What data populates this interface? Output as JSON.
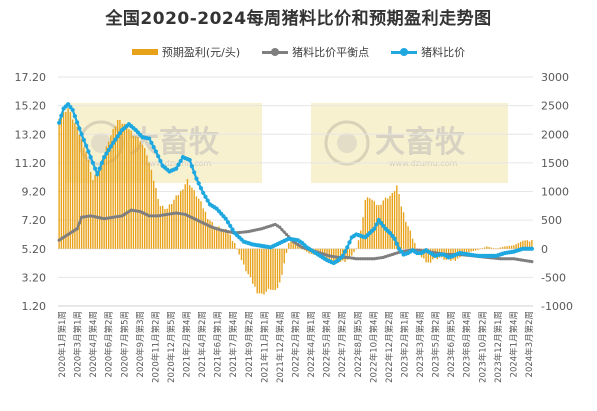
{
  "chart_data": {
    "type": "bar+line",
    "title": "全国2020-2024每周猪料比价和预期盈利走势图",
    "series": [
      {
        "name": "预期盈利(元/头)",
        "kind": "bar",
        "axis": "right",
        "color": "#E8A21A"
      },
      {
        "name": "猪料比价平衡点",
        "kind": "line",
        "axis": "left",
        "color": "#7F7F7F"
      },
      {
        "name": "猪料比价",
        "kind": "line",
        "axis": "left",
        "color": "#1FA8E0"
      }
    ],
    "y_left": {
      "min": 1.2,
      "max": 17.2,
      "ticks": [
        "1.20",
        "3.20",
        "5.20",
        "7.20",
        "9.20",
        "11.20",
        "13.20",
        "15.20",
        "17.20"
      ]
    },
    "y_right": {
      "min": -1000,
      "max": 3000,
      "ticks": [
        "-1000",
        "-500",
        "0",
        "500",
        "1000",
        "1500",
        "2000",
        "2500",
        "3000"
      ]
    },
    "x_labels": [
      "2020年1月第1周",
      "2020年3月第1周",
      "2020年4月第4周",
      "2020年6月第2周",
      "2020年7月第5周",
      "2020年9月第3周",
      "2020年11月第2周",
      "2020年12月第5周",
      "2021年2月第4周",
      "2021年4月第2周",
      "2021年6月第1周",
      "2021年7月第4周",
      "2021年9月第2周",
      "2021年11月第1周",
      "2021年12月第4周",
      "2022年2月第2周",
      "2022年4月第1周",
      "2022年5月第4周",
      "2022年7月第2周",
      "2022年8月第5周",
      "2022年10月第4周",
      "2022年12月第2周",
      "2023年2月第1周",
      "2023年3月第4周",
      "2023年5月第2周",
      "2023年6月第5周",
      "2023年8月第4周",
      "2023年10月第2周",
      "2023年12月第1周",
      "2024年1月第4周",
      "2024年3月第2周"
    ],
    "anchors": {
      "ratio": [
        [
          0,
          14.0
        ],
        [
          2,
          15.0
        ],
        [
          4,
          15.3
        ],
        [
          6,
          14.9
        ],
        [
          9,
          13.6
        ],
        [
          12,
          12.4
        ],
        [
          15,
          11.2
        ],
        [
          17,
          10.4
        ],
        [
          20,
          11.6
        ],
        [
          24,
          12.6
        ],
        [
          28,
          13.5
        ],
        [
          31,
          13.9
        ],
        [
          34,
          13.5
        ],
        [
          37,
          13.0
        ],
        [
          40,
          12.9
        ],
        [
          43,
          12.0
        ],
        [
          46,
          11.0
        ],
        [
          49,
          10.6
        ],
        [
          52,
          10.8
        ],
        [
          55,
          11.6
        ],
        [
          58,
          11.4
        ],
        [
          61,
          10.1
        ],
        [
          64,
          9.1
        ],
        [
          67,
          8.3
        ],
        [
          70,
          8.0
        ],
        [
          74,
          7.3
        ],
        [
          78,
          6.3
        ],
        [
          82,
          5.7
        ],
        [
          86,
          5.5
        ],
        [
          90,
          5.4
        ],
        [
          94,
          5.3
        ],
        [
          98,
          5.6
        ],
        [
          102,
          5.9
        ],
        [
          106,
          5.8
        ],
        [
          108,
          5.6
        ],
        [
          110,
          5.3
        ],
        [
          113,
          5.0
        ],
        [
          116,
          4.7
        ],
        [
          119,
          4.4
        ],
        [
          122,
          4.2
        ],
        [
          124,
          4.4
        ],
        [
          126,
          4.7
        ],
        [
          128,
          5.3
        ],
        [
          130,
          6.0
        ],
        [
          132,
          6.2
        ],
        [
          134,
          6.1
        ],
        [
          136,
          6.0
        ],
        [
          138,
          6.3
        ],
        [
          140,
          6.6
        ],
        [
          142,
          7.2
        ],
        [
          143,
          7.0
        ],
        [
          145,
          6.6
        ],
        [
          147,
          6.3
        ],
        [
          149,
          5.9
        ],
        [
          151,
          5.2
        ],
        [
          153,
          4.8
        ],
        [
          155,
          4.9
        ],
        [
          157,
          5.1
        ],
        [
          159,
          4.9
        ],
        [
          161,
          4.9
        ],
        [
          163,
          5.1
        ],
        [
          165,
          4.9
        ],
        [
          167,
          4.7
        ],
        [
          169,
          4.8
        ],
        [
          171,
          4.8
        ],
        [
          173,
          4.6
        ],
        [
          175,
          4.7
        ],
        [
          178,
          4.9
        ],
        [
          182,
          4.8
        ],
        [
          186,
          4.7
        ],
        [
          190,
          4.7
        ],
        [
          194,
          4.7
        ],
        [
          198,
          4.9
        ],
        [
          202,
          5.0
        ],
        [
          206,
          5.2
        ],
        [
          210,
          5.2
        ]
      ],
      "breakeven": [
        [
          0,
          5.8
        ],
        [
          5,
          6.3
        ],
        [
          8,
          6.6
        ],
        [
          10,
          7.4
        ],
        [
          14,
          7.5
        ],
        [
          20,
          7.3
        ],
        [
          24,
          7.4
        ],
        [
          28,
          7.5
        ],
        [
          32,
          7.9
        ],
        [
          36,
          7.8
        ],
        [
          40,
          7.5
        ],
        [
          44,
          7.5
        ],
        [
          48,
          7.6
        ],
        [
          52,
          7.7
        ],
        [
          56,
          7.6
        ],
        [
          60,
          7.3
        ],
        [
          64,
          7.0
        ],
        [
          68,
          6.7
        ],
        [
          72,
          6.5
        ],
        [
          78,
          6.3
        ],
        [
          84,
          6.4
        ],
        [
          90,
          6.6
        ],
        [
          94,
          6.8
        ],
        [
          96,
          6.9
        ],
        [
          98,
          6.7
        ],
        [
          101,
          6.2
        ],
        [
          104,
          5.7
        ],
        [
          108,
          5.3
        ],
        [
          112,
          5.1
        ],
        [
          116,
          4.9
        ],
        [
          120,
          4.7
        ],
        [
          124,
          4.6
        ],
        [
          128,
          4.6
        ],
        [
          132,
          4.5
        ],
        [
          136,
          4.5
        ],
        [
          140,
          4.5
        ],
        [
          144,
          4.6
        ],
        [
          148,
          4.8
        ],
        [
          152,
          5.0
        ],
        [
          156,
          5.1
        ],
        [
          160,
          5.1
        ],
        [
          164,
          5.0
        ],
        [
          168,
          4.9
        ],
        [
          172,
          4.8
        ],
        [
          178,
          4.8
        ],
        [
          184,
          4.7
        ],
        [
          190,
          4.6
        ],
        [
          196,
          4.5
        ],
        [
          202,
          4.5
        ],
        [
          206,
          4.4
        ],
        [
          210,
          4.3
        ]
      ],
      "profit": [
        [
          0,
          2300
        ],
        [
          4,
          2450
        ],
        [
          8,
          2100
        ],
        [
          12,
          1700
        ],
        [
          15,
          1200
        ],
        [
          18,
          1400
        ],
        [
          22,
          1900
        ],
        [
          26,
          2250
        ],
        [
          30,
          2150
        ],
        [
          33,
          2000
        ],
        [
          36,
          1900
        ],
        [
          39,
          1650
        ],
        [
          42,
          1200
        ],
        [
          45,
          750
        ],
        [
          48,
          700
        ],
        [
          51,
          850
        ],
        [
          54,
          1000
        ],
        [
          57,
          1200
        ],
        [
          60,
          1000
        ],
        [
          63,
          800
        ],
        [
          66,
          550
        ],
        [
          69,
          400
        ],
        [
          72,
          350
        ],
        [
          75,
          300
        ],
        [
          78,
          100
        ],
        [
          80,
          -100
        ],
        [
          82,
          -300
        ],
        [
          84,
          -450
        ],
        [
          86,
          -600
        ],
        [
          88,
          -750
        ],
        [
          90,
          -800
        ],
        [
          92,
          -750
        ],
        [
          94,
          -700
        ],
        [
          96,
          -750
        ],
        [
          98,
          -600
        ],
        [
          100,
          -250
        ],
        [
          102,
          100
        ],
        [
          104,
          150
        ],
        [
          106,
          100
        ],
        [
          108,
          0
        ],
        [
          111,
          -80
        ],
        [
          115,
          -120
        ],
        [
          119,
          -180
        ],
        [
          123,
          -220
        ],
        [
          126,
          -230
        ],
        [
          129,
          -180
        ],
        [
          132,
          0
        ],
        [
          134,
          300
        ],
        [
          136,
          850
        ],
        [
          138,
          900
        ],
        [
          140,
          800
        ],
        [
          142,
          750
        ],
        [
          144,
          850
        ],
        [
          146,
          900
        ],
        [
          148,
          950
        ],
        [
          150,
          1100
        ],
        [
          152,
          750
        ],
        [
          154,
          500
        ],
        [
          156,
          300
        ],
        [
          158,
          100
        ],
        [
          160,
          -100
        ],
        [
          162,
          -200
        ],
        [
          164,
          -250
        ],
        [
          166,
          -180
        ],
        [
          168,
          -160
        ],
        [
          170,
          -150
        ],
        [
          172,
          -200
        ],
        [
          175,
          -200
        ],
        [
          178,
          -150
        ],
        [
          182,
          -60
        ],
        [
          186,
          -20
        ],
        [
          190,
          40
        ],
        [
          194,
          0
        ],
        [
          198,
          40
        ],
        [
          202,
          60
        ],
        [
          206,
          140
        ],
        [
          210,
          160
        ]
      ]
    },
    "weeks": 211,
    "watermark": {
      "text": "大畜牧",
      "sub": "www.dzumu.com"
    }
  }
}
